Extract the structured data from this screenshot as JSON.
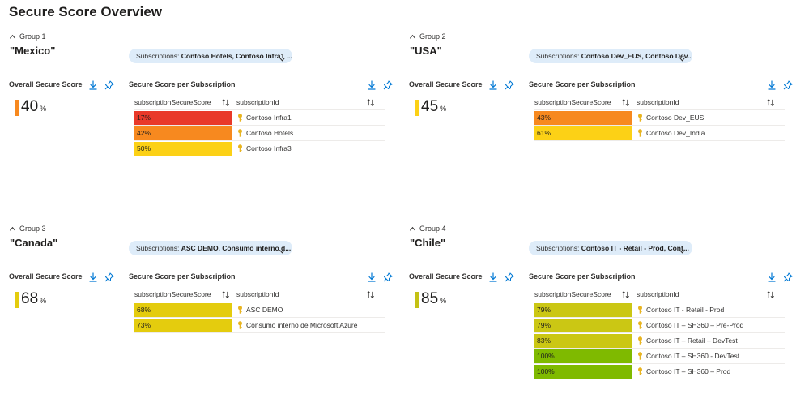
{
  "page": {
    "title": "Secure Score Overview"
  },
  "labels": {
    "overall": "Overall Secure Score",
    "per_subscription": "Secure Score per Subscription",
    "col_score": "subscriptionSecureScore",
    "col_id": "subscriptionId",
    "percent": "%",
    "subscriptions_prefix": "Subscriptions: "
  },
  "colors": {
    "score_17": "#e9392a",
    "score_42": "#f7891f",
    "score_43": "#f7891f",
    "score_45": "#fcd116",
    "score_50": "#fcd116",
    "score_61": "#fcd116",
    "score_68": "#e4cc0e",
    "score_73": "#e4cc0e",
    "score_79": "#cbc714",
    "score_83": "#cbc714",
    "score_85": "#c4c114",
    "score_100": "#7fba00",
    "key": "#e8b420",
    "icon_blue": "#0078d4",
    "pill_bg": "#deecf9"
  },
  "groups": [
    {
      "header": "Group 1",
      "name": "\"Mexico\"",
      "subscriptions": "Contoso Hotels, Contoso Infra1 ...",
      "overall_score": "40",
      "overall_color": "#f7891f",
      "rows": [
        {
          "score": "17%",
          "id": "Contoso Infra1",
          "color": "#e9392a"
        },
        {
          "score": "42%",
          "id": "Contoso Hotels",
          "color": "#f7891f"
        },
        {
          "score": "50%",
          "id": "Contoso Infra3",
          "color": "#fcd116"
        }
      ]
    },
    {
      "header": "Group 2",
      "name": "\"USA\"",
      "subscriptions": "Contoso Dev_EUS, Contoso Dev...",
      "overall_score": "45",
      "overall_color": "#fcd116",
      "rows": [
        {
          "score": "43%",
          "id": "Contoso Dev_EUS",
          "color": "#f7891f"
        },
        {
          "score": "61%",
          "id": "Contoso Dev_India",
          "color": "#fcd116"
        }
      ]
    },
    {
      "header": "Group 3",
      "name": "\"Canada\"",
      "subscriptions": "ASC DEMO, Consumo interno d...",
      "overall_score": "68",
      "overall_color": "#e4cc0e",
      "rows": [
        {
          "score": "68%",
          "id": "ASC DEMO",
          "color": "#e4cc0e"
        },
        {
          "score": "73%",
          "id": "Consumo interno de Microsoft Azure",
          "color": "#e4cc0e"
        }
      ]
    },
    {
      "header": "Group 4",
      "name": "\"Chile\"",
      "subscriptions": "Contoso IT - Retail - Prod, Cont...",
      "overall_score": "85",
      "overall_color": "#c4c114",
      "rows": [
        {
          "score": "79%",
          "id": "Contoso IT - Retail - Prod",
          "color": "#cbc714"
        },
        {
          "score": "79%",
          "id": "Contoso IT – SH360 – Pre-Prod",
          "color": "#cbc714"
        },
        {
          "score": "83%",
          "id": "Contoso IT – Retail – DevTest",
          "color": "#cbc714"
        },
        {
          "score": "100%",
          "id": "Contoso IT – SH360 - DevTest",
          "color": "#7fba00"
        },
        {
          "score": "100%",
          "id": "Contoso IT – SH360 – Prod",
          "color": "#7fba00"
        }
      ]
    }
  ]
}
